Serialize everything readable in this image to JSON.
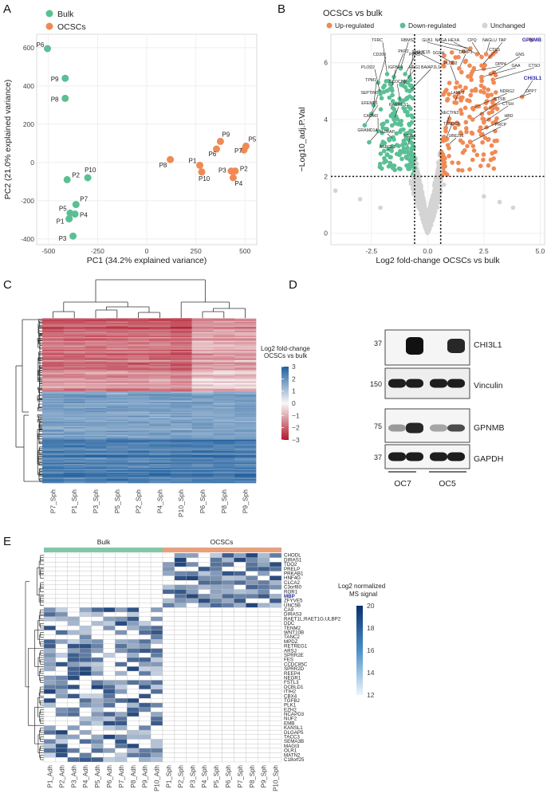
{
  "panels": {
    "A": "A",
    "B": "B",
    "C": "C",
    "D": "D",
    "E": "E"
  },
  "colors": {
    "bulk": "#5bbf95",
    "ocscs": "#f08a55",
    "unchanged": "#d4d4d4",
    "highlight": "#2a2aa0",
    "red": "#c0392b",
    "blue": "#1f5f9e"
  },
  "chart_data": [
    {
      "id": "pca",
      "type": "scatter",
      "xlabel": "PC1 (34.2% explained variance)",
      "ylabel": "PC2 (21.0% explained variance)",
      "xlim": [
        -560,
        560
      ],
      "ylim": [
        -430,
        670
      ],
      "xticks": [
        -500,
        -250,
        0,
        250,
        500
      ],
      "yticks": [
        -400,
        -200,
        0,
        200,
        400,
        600
      ],
      "legend": [
        "Bulk",
        "OCSCs"
      ],
      "series": [
        {
          "name": "Bulk",
          "points": [
            {
              "label": "P6",
              "x": -505,
              "y": 595
            },
            {
              "label": "P9",
              "x": -415,
              "y": 440
            },
            {
              "label": "P8",
              "x": -415,
              "y": 335
            },
            {
              "label": "P2",
              "x": -405,
              "y": -90
            },
            {
              "label": "P10",
              "x": -300,
              "y": -80
            },
            {
              "label": "P7",
              "x": -360,
              "y": -220
            },
            {
              "label": "P5",
              "x": -390,
              "y": -265
            },
            {
              "label": "P4",
              "x": -365,
              "y": -270
            },
            {
              "label": "P1",
              "x": -395,
              "y": -295
            },
            {
              "label": "P3",
              "x": -375,
              "y": -385
            }
          ]
        },
        {
          "name": "OCSCs",
          "points": [
            {
              "label": "P8",
              "x": 120,
              "y": 15
            },
            {
              "label": "P1",
              "x": 270,
              "y": -15
            },
            {
              "label": "P10",
              "x": 280,
              "y": -50
            },
            {
              "label": "P6",
              "x": 355,
              "y": 70
            },
            {
              "label": "P9",
              "x": 375,
              "y": 110
            },
            {
              "label": "P5",
              "x": 505,
              "y": 85
            },
            {
              "label": "P7",
              "x": 495,
              "y": 65
            },
            {
              "label": "P3",
              "x": 430,
              "y": -45
            },
            {
              "label": "P2",
              "x": 450,
              "y": -45
            },
            {
              "label": "P4",
              "x": 440,
              "y": -80
            }
          ]
        }
      ]
    },
    {
      "id": "volcano",
      "type": "scatter",
      "title": "OCSCs vs bulk",
      "xlabel": "Log2 fold-change OCSCs vs bulk",
      "ylabel": "−Log10_adj.P.Val",
      "xlim": [
        -4.3,
        5.2
      ],
      "ylim": [
        -0.4,
        7.0
      ],
      "xticks": [
        -2.5,
        0.0,
        2.5,
        5.0
      ],
      "xtick_labels": [
        "-2.5",
        "0.0",
        "2.5",
        "5.0"
      ],
      "yticks": [
        0,
        2,
        4,
        6
      ],
      "thresholds": {
        "fc_low": -0.58,
        "fc_high": 0.58,
        "p": 2.0
      },
      "legend": [
        "Up-regulated",
        "Down-regulated",
        "Unchanged"
      ],
      "labeled_genes": [
        {
          "g": "TFRC",
          "x": -1.8,
          "y": 5.6
        },
        {
          "g": "RBMS2",
          "x": -1.2,
          "y": 5.8
        },
        {
          "g": "GLB1",
          "x": 1.6,
          "y": 6.4
        },
        {
          "g": "NAGA",
          "x": 1.9,
          "y": 6.5
        },
        {
          "g": "HEXA",
          "x": 2.2,
          "y": 6.3
        },
        {
          "g": "CPQ",
          "x": 2.4,
          "y": 6.2
        },
        {
          "g": "NAGLU",
          "x": 2.6,
          "y": 6.3
        },
        {
          "g": "TAP",
          "x": 2.9,
          "y": 6.3
        },
        {
          "g": "GPNMB",
          "x": 4.6,
          "y": 6.8
        },
        {
          "g": "CD200",
          "x": -2.2,
          "y": 5.3
        },
        {
          "g": "PKP2",
          "x": -1.5,
          "y": 5.5
        },
        {
          "g": "PRR5",
          "x": -1.0,
          "y": 5.6
        },
        {
          "g": "LRIG1",
          "x": -0.8,
          "y": 5.5
        },
        {
          "g": "DNAJC15",
          "x": 0.7,
          "y": 5.9
        },
        {
          "g": "SGSH",
          "x": 1.1,
          "y": 6.0
        },
        {
          "g": "LAMP1",
          "x": 1.4,
          "y": 5.8
        },
        {
          "g": "CTSS",
          "x": 2.4,
          "y": 5.9
        },
        {
          "g": "GNS",
          "x": 2.8,
          "y": 5.6
        },
        {
          "g": "PLOD2",
          "x": -2.1,
          "y": 4.9
        },
        {
          "g": "IGFBP4",
          "x": -1.6,
          "y": 5.1
        },
        {
          "g": "HEG1",
          "x": -1.1,
          "y": 5.2
        },
        {
          "g": "BAIAP2L1",
          "x": -0.8,
          "y": 5.0
        },
        {
          "g": "PLOD2",
          "x": 1.3,
          "y": 5.3
        },
        {
          "g": "DPP4",
          "x": 2.0,
          "y": 5.7
        },
        {
          "g": "GAA",
          "x": 2.4,
          "y": 5.5
        },
        {
          "g": "CTSO",
          "x": 2.9,
          "y": 5.4
        },
        {
          "g": "TPM1",
          "x": -2.4,
          "y": 4.5
        },
        {
          "g": "CCDC80",
          "x": -1.2,
          "y": 4.6
        },
        {
          "g": "LAMP2",
          "x": 1.2,
          "y": 4.6
        },
        {
          "g": "CHI3L1",
          "x": 4.2,
          "y": 4.8
        },
        {
          "g": "SEPTIN6",
          "x": -2.5,
          "y": 4.2
        },
        {
          "g": "NDRG2",
          "x": 2.0,
          "y": 4.4
        },
        {
          "g": "DPP7",
          "x": 3.0,
          "y": 4.5
        },
        {
          "g": "EFEMP1",
          "x": -2.8,
          "y": 3.8
        },
        {
          "g": "RARRES1",
          "x": -1.5,
          "y": 4.0
        },
        {
          "g": "CTSB",
          "x": 2.0,
          "y": 4.0
        },
        {
          "g": "CTSH",
          "x": 2.5,
          "y": 3.9
        },
        {
          "g": "CADM3",
          "x": -2.2,
          "y": 3.6
        },
        {
          "g": "NECTIN3",
          "x": 0.8,
          "y": 3.7
        },
        {
          "g": "HBD",
          "x": 2.3,
          "y": 3.6
        },
        {
          "g": "GRAMD1A",
          "x": -2.6,
          "y": 3.2
        },
        {
          "g": "IL1RAP",
          "x": -1.5,
          "y": 3.3
        },
        {
          "g": "TXNDC5",
          "x": 0.8,
          "y": 3.3
        },
        {
          "g": "PRCP",
          "x": 1.9,
          "y": 3.2
        },
        {
          "g": "FSTL1",
          "x": -0.9,
          "y": 3.0
        },
        {
          "g": "UBE2J1",
          "x": 0.9,
          "y": 3.1
        },
        {
          "g": "ASRGL1",
          "x": -1.6,
          "y": 2.9
        }
      ]
    },
    {
      "id": "heatmap_c",
      "type": "heatmap",
      "legend_title": "Log2 fold-change\nOCSCs vs bulk",
      "scale_ticks": [
        3,
        2,
        1,
        0,
        -1,
        -2,
        -3
      ],
      "columns": [
        "P7_Sph",
        "P1_Sph",
        "P3_Sph",
        "P5_Sph",
        "P2_Sph",
        "P4_Sph",
        "P10_Sph",
        "P6_Sph",
        "P8_Sph",
        "P9_Sph"
      ]
    },
    {
      "id": "heatmap_e",
      "type": "heatmap",
      "legend_title": "Log2 normalized\nMS signal",
      "scale_ticks": [
        20,
        18,
        16,
        14,
        12
      ],
      "groups": [
        "Bulk",
        "OCSCs"
      ],
      "columns": [
        "P1_Adh",
        "P2_Adh",
        "P3_Adh",
        "P4_Adh",
        "P5_Adh",
        "P6_Adh",
        "P7_Adh",
        "P8_Adh",
        "P9_Adh",
        "P10_Adh",
        "P1_Sph",
        "P2_Sph",
        "P3_Sph",
        "P4_Sph",
        "P5_Sph",
        "P6_Sph",
        "P7_Sph",
        "P8_Sph",
        "P9_Sph",
        "P10_Sph"
      ],
      "rows": [
        "CHODL",
        "DIRAS1",
        "TDO2",
        "PRELP",
        "PRKAB1",
        "HNF4G",
        "CLCA2",
        "C3orf80",
        "ROR1",
        "ZFYVE5",
        "UNC5B",
        "CA9",
        "DIRAS3",
        "RAET1L;RAET1G;ULBP2",
        "DDC",
        "TENM2",
        "WNT10B",
        "TANC2",
        "MPDZ",
        "RETREG1",
        "ARSJ",
        "SPRR2E",
        "FES",
        "CCDC85C",
        "SPRR2D",
        "REEP4",
        "NEGR1",
        "FSTL3",
        "DCBLD1",
        "ITIH2",
        "CBX4",
        "TGFB2",
        "PLK1",
        "EZH2",
        "NCAPD3",
        "NUF2",
        "EMB",
        "KANSL1",
        "DLGAP5",
        "TACC3",
        "SEMA3B",
        "MAGI3",
        "OLR1",
        "MATN2",
        "C18orf25"
      ],
      "highlight_row": "MBP"
    }
  ],
  "western": {
    "markers": [
      "37",
      "150",
      "75",
      "37"
    ],
    "proteins": [
      "CHI3L1",
      "Vinculin",
      "GPNMB",
      "GAPDH"
    ],
    "lines": [
      "OC7",
      "OC5"
    ]
  }
}
